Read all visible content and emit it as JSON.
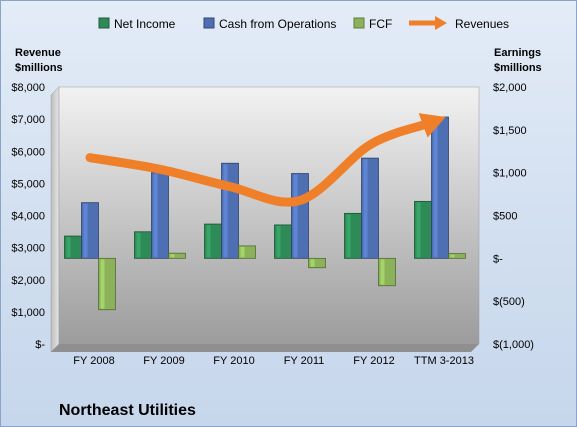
{
  "chart_data": {
    "type": "bar",
    "title": "Northeast Utilities",
    "categories": [
      "FY 2008",
      "FY 2009",
      "FY 2010",
      "FY 2011",
      "FY 2012",
      "TTM 3-2013"
    ],
    "series": [
      {
        "name": "Net Income",
        "axis": "right",
        "kind": "bar",
        "color": "#2e8b57",
        "values": [
          260,
          310,
          400,
          390,
          525,
          665
        ]
      },
      {
        "name": "Cash from Operations",
        "axis": "right",
        "kind": "bar",
        "color": "#4f6fb3",
        "values": [
          650,
          1000,
          1110,
          990,
          1170,
          1650
        ]
      },
      {
        "name": "FCF",
        "axis": "right",
        "kind": "bar",
        "color": "#8bb25a",
        "values": [
          -600,
          60,
          145,
          -110,
          -320,
          55
        ]
      },
      {
        "name": "Revenues",
        "axis": "left",
        "kind": "line",
        "color": "#f07f2a",
        "values": [
          5800,
          5440,
          4900,
          4470,
          6200,
          7000
        ]
      }
    ],
    "left_axis": {
      "label": "Revenue $millions",
      "label_lines": [
        "Revenue",
        "$millions"
      ],
      "ylim": [
        0,
        8000
      ],
      "ticks": [
        0,
        1000,
        2000,
        3000,
        4000,
        5000,
        6000,
        7000,
        8000
      ],
      "tick_labels": [
        "$-",
        "$1,000",
        "$2,000",
        "$3,000",
        "$4,000",
        "$5,000",
        "$6,000",
        "$7,000",
        "$8,000"
      ]
    },
    "right_axis": {
      "label": "Earnings $millions",
      "label_lines": [
        "Earnings",
        "$millions"
      ],
      "ylim": [
        -1000,
        2000
      ],
      "ticks": [
        -1000,
        -500,
        0,
        500,
        1000,
        1500,
        2000
      ],
      "tick_labels": [
        "$(1,000)",
        "$(500)",
        "$-",
        "$500",
        "$1,000",
        "$1,500",
        "$2,000"
      ]
    },
    "legend_placement": "top",
    "grid": false
  }
}
